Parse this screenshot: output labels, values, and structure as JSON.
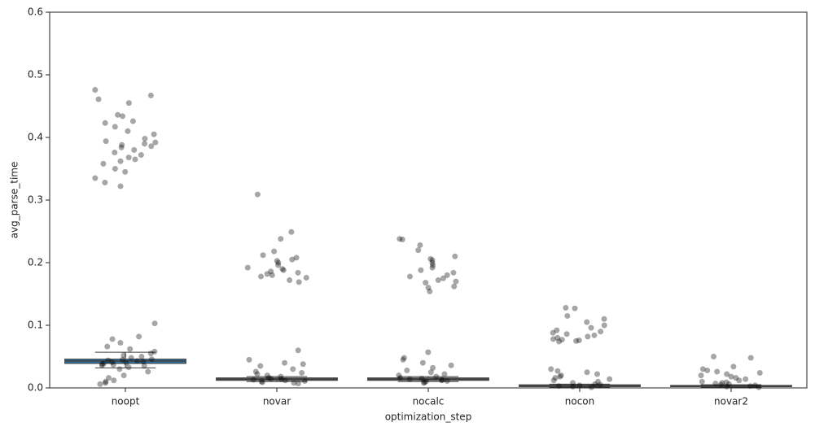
{
  "chart_data": {
    "type": "boxstrip",
    "x_label": "optimization_step",
    "y_label": "avg_parse_time",
    "categories": [
      "noopt",
      "novar",
      "nocalc",
      "nocon",
      "novar2"
    ],
    "ylim": [
      0,
      0.6
    ],
    "yticks": [
      {
        "value": 0,
        "label": "0.0"
      },
      0.1,
      0.2,
      0.3,
      0.4,
      0.5,
      0.6
    ],
    "box_colors": [
      "#3274a1",
      "#5f5f5f",
      "#5f5f5f",
      "#5f5f5f",
      "#5f5f5f"
    ],
    "point_color": "#000000",
    "boxes": [
      {
        "whislo": 0.032,
        "q1": 0.039,
        "median": 0.043,
        "q3": 0.046,
        "whishi": 0.057
      },
      {
        "whislo": 0.01,
        "q1": 0.012,
        "median": 0.014,
        "q3": 0.016,
        "whishi": 0.018
      },
      {
        "whislo": 0.01,
        "q1": 0.012,
        "median": 0.014,
        "q3": 0.016,
        "whishi": 0.018
      },
      {
        "whislo": 0.001,
        "q1": 0.002,
        "median": 0.003,
        "q3": 0.005,
        "whishi": 0.006
      },
      {
        "whislo": 0.001,
        "q1": 0.002,
        "median": 0.003,
        "q3": 0.004,
        "whishi": 0.005
      }
    ],
    "points": [
      [
        0.476,
        0.467,
        0.461,
        0.455,
        0.436,
        0.434,
        0.426,
        0.423,
        0.417,
        0.41,
        0.405,
        0.398,
        0.394,
        0.392,
        0.39,
        0.388,
        0.386,
        0.384,
        0.38,
        0.376,
        0.372,
        0.368,
        0.365,
        0.362,
        0.358,
        0.35,
        0.345,
        0.335,
        0.328,
        0.322,
        0.103,
        0.082,
        0.078,
        0.072,
        0.066,
        0.062,
        0.058,
        0.055,
        0.052,
        0.05,
        0.048,
        0.046,
        0.045,
        0.044,
        0.043,
        0.042,
        0.041,
        0.04,
        0.039,
        0.038,
        0.037,
        0.036,
        0.035,
        0.033,
        0.03,
        0.026,
        0.02,
        0.016,
        0.012,
        0.01,
        0.008,
        0.006
      ],
      [
        0.309,
        0.249,
        0.238,
        0.218,
        0.212,
        0.208,
        0.205,
        0.203,
        0.2,
        0.196,
        0.192,
        0.19,
        0.188,
        0.186,
        0.184,
        0.182,
        0.18,
        0.178,
        0.176,
        0.172,
        0.169,
        0.06,
        0.045,
        0.04,
        0.038,
        0.035,
        0.03,
        0.026,
        0.024,
        0.022,
        0.02,
        0.018,
        0.016,
        0.015,
        0.014,
        0.013,
        0.012,
        0.011,
        0.01,
        0.009,
        0.008,
        0.007
      ],
      [
        0.238,
        0.237,
        0.228,
        0.22,
        0.21,
        0.206,
        0.204,
        0.2,
        0.196,
        0.192,
        0.188,
        0.184,
        0.18,
        0.178,
        0.175,
        0.172,
        0.17,
        0.168,
        0.162,
        0.16,
        0.154,
        0.057,
        0.048,
        0.045,
        0.04,
        0.036,
        0.032,
        0.028,
        0.025,
        0.022,
        0.02,
        0.018,
        0.016,
        0.015,
        0.014,
        0.013,
        0.012,
        0.011,
        0.01,
        0.009,
        0.008
      ],
      [
        0.128,
        0.127,
        0.115,
        0.11,
        0.105,
        0.1,
        0.096,
        0.092,
        0.09,
        0.088,
        0.086,
        0.084,
        0.082,
        0.08,
        0.078,
        0.077,
        0.076,
        0.075,
        0.074,
        0.03,
        0.027,
        0.025,
        0.022,
        0.02,
        0.018,
        0.016,
        0.014,
        0.012,
        0.01,
        0.008,
        0.006,
        0.005,
        0.004,
        0.003,
        0.002,
        0.001
      ],
      [
        0.05,
        0.048,
        0.034,
        0.03,
        0.028,
        0.026,
        0.024,
        0.022,
        0.02,
        0.018,
        0.016,
        0.014,
        0.012,
        0.01,
        0.009,
        0.008,
        0.007,
        0.006,
        0.005,
        0.004,
        0.003,
        0.002,
        0.001
      ]
    ]
  }
}
